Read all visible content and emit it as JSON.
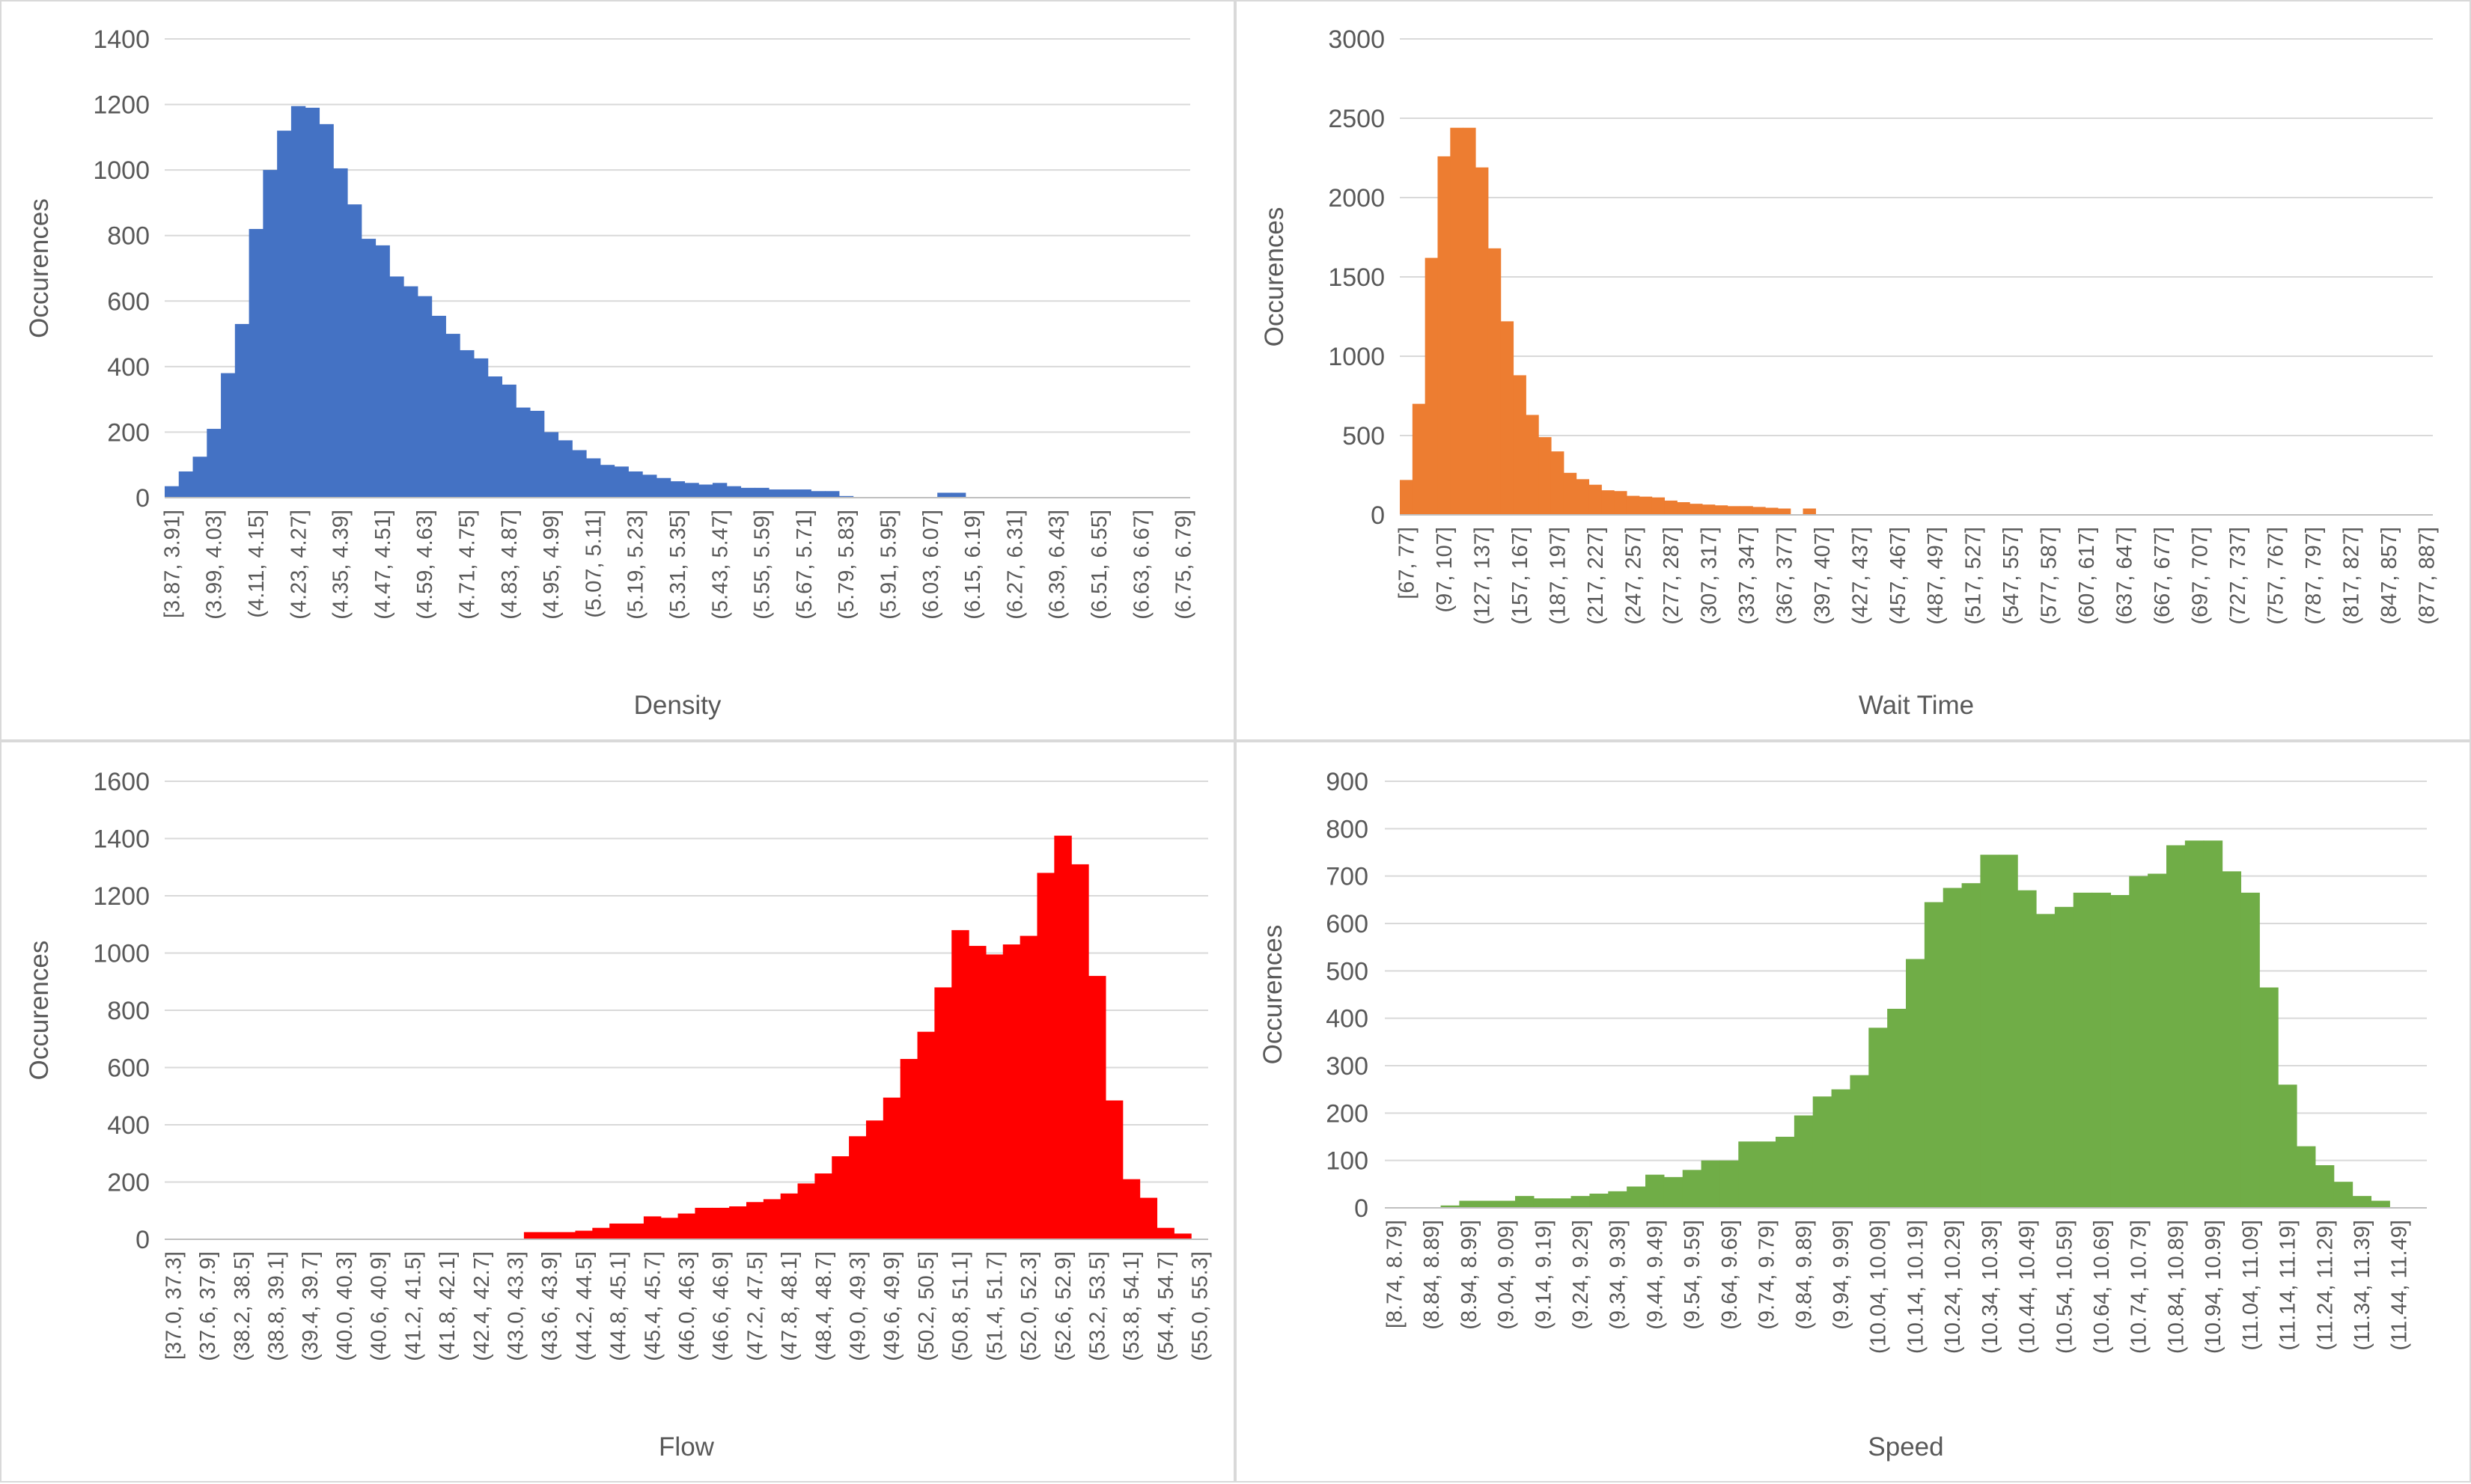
{
  "chart_data": [
    {
      "type": "bar",
      "xlabel": "Density",
      "ylabel": "Occurences",
      "ylim": [
        0,
        1400
      ],
      "yticks": [
        0,
        200,
        400,
        600,
        800,
        1000,
        1200,
        1400
      ],
      "grid": true,
      "color": "#4472c4",
      "categories": [
        "[3.87, 3.91]",
        "(3.91, 3.95]",
        "(3.95, 3.99]",
        "(3.99, 4.03]",
        "(4.03, 4.07]",
        "(4.07, 4.11]",
        "(4.11, 4.15]",
        "(4.15, 4.19]",
        "(4.19, 4.23]",
        "(4.23, 4.27]",
        "(4.27, 4.31]",
        "(4.31, 4.35]",
        "(4.35, 4.39]",
        "(4.39, 4.43]",
        "(4.43, 4.47]",
        "(4.47, 4.51]",
        "(4.51, 4.55]",
        "(4.55, 4.59]",
        "(4.59, 4.63]",
        "(4.63, 4.67]",
        "(4.67, 4.71]",
        "(4.71, 4.75]",
        "(4.75, 4.79]",
        "(4.79, 4.83]",
        "(4.83, 4.87]",
        "(4.87, 4.91]",
        "(4.91, 4.95]",
        "(4.95, 4.99]",
        "(4.99, 5.03]",
        "(5.03, 5.07]",
        "(5.07, 5.11]",
        "(5.11, 5.15]",
        "(5.15, 5.19]",
        "(5.19, 5.23]",
        "(5.23, 5.27]",
        "(5.27, 5.31]",
        "(5.31, 5.35]",
        "(5.35, 5.39]",
        "(5.39, 5.43]",
        "(5.43, 5.47]",
        "(5.47, 5.51]",
        "(5.51, 5.55]",
        "(5.55, 5.59]",
        "(5.59, 5.63]",
        "(5.63, 5.67]",
        "(5.67, 5.71]",
        "(5.71, 5.75]",
        "(5.75, 5.79]",
        "(5.79, 5.83]",
        "(5.83, 5.87]",
        "(5.87, 5.91]",
        "(5.91, 5.95]",
        "(5.95, 5.99]",
        "(5.99, 6.03]",
        "(6.03, 6.07]",
        "(6.07, 6.11]",
        "(6.11, 6.15]",
        "(6.15, 6.19]",
        "(6.19, 6.23]",
        "(6.23, 6.27]",
        "(6.27, 6.31]",
        "(6.31, 6.35]",
        "(6.35, 6.39]",
        "(6.39, 6.43]",
        "(6.43, 6.47]",
        "(6.47, 6.51]",
        "(6.51, 6.55]",
        "(6.55, 6.59]",
        "(6.59, 6.63]",
        "(6.63, 6.67]",
        "(6.67, 6.71]",
        "(6.71, 6.75]",
        "(6.75, 6.79]"
      ],
      "values": [
        35,
        80,
        125,
        210,
        380,
        530,
        820,
        1000,
        1120,
        1195,
        1190,
        1140,
        1005,
        895,
        790,
        770,
        675,
        645,
        615,
        555,
        500,
        450,
        425,
        370,
        345,
        275,
        265,
        200,
        175,
        145,
        120,
        100,
        95,
        80,
        70,
        60,
        50,
        45,
        40,
        45,
        35,
        30,
        30,
        25,
        25,
        25,
        20,
        20,
        5,
        0,
        0,
        0,
        0,
        0,
        0,
        15,
        15,
        0,
        0,
        0,
        0,
        0,
        0,
        0,
        0,
        0,
        0,
        0,
        0,
        0,
        0,
        0,
        0
      ]
    },
    {
      "type": "bar",
      "xlabel": "Wait Time",
      "ylabel": "Occurences",
      "ylim": [
        0,
        3000
      ],
      "yticks": [
        0,
        500,
        1000,
        1500,
        2000,
        2500,
        3000
      ],
      "grid": true,
      "color": "#ed7d31",
      "categories": [
        "[67, 77]",
        "(77, 87]",
        "(87, 97]",
        "(97, 107]",
        "(107, 117]",
        "(117, 127]",
        "(127, 137]",
        "(137, 147]",
        "(147, 157]",
        "(157, 167]",
        "(167, 177]",
        "(177, 187]",
        "(187, 197]",
        "(197, 207]",
        "(207, 217]",
        "(217, 227]",
        "(227, 237]",
        "(237, 247]",
        "(247, 257]",
        "(257, 267]",
        "(267, 277]",
        "(277, 287]",
        "(287, 297]",
        "(297, 307]",
        "(307, 317]",
        "(317, 327]",
        "(327, 337]",
        "(337, 347]",
        "(347, 357]",
        "(357, 367]",
        "(367, 377]",
        "(377, 387]",
        "(387, 397]",
        "(397, 407]",
        "(407, 417]",
        "(417, 427]",
        "(427, 437]",
        "(437, 447]",
        "(447, 457]",
        "(457, 467]",
        "(467, 477]",
        "(477, 487]",
        "(487, 497]",
        "(497, 507]",
        "(507, 517]",
        "(517, 527]",
        "(527, 537]",
        "(537, 547]",
        "(547, 557]",
        "(557, 567]",
        "(567, 577]",
        "(577, 587]",
        "(587, 597]",
        "(597, 607]",
        "(607, 617]",
        "(617, 627]",
        "(627, 637]",
        "(637, 647]",
        "(647, 657]",
        "(657, 667]",
        "(667, 677]",
        "(677, 687]",
        "(687, 697]",
        "(697, 707]",
        "(707, 717]",
        "(717, 727]",
        "(727, 737]",
        "(737, 747]",
        "(747, 757]",
        "(757, 767]",
        "(767, 777]",
        "(777, 787]",
        "(787, 797]",
        "(797, 807]",
        "(807, 817]",
        "(817, 827]",
        "(827, 837]",
        "(837, 847]",
        "(847, 857]",
        "(857, 867]",
        "(867, 877]",
        "(877, 887]"
      ],
      "values": [
        220,
        700,
        1620,
        2260,
        2440,
        2440,
        2190,
        1680,
        1220,
        880,
        630,
        490,
        400,
        265,
        225,
        190,
        155,
        150,
        120,
        115,
        110,
        90,
        80,
        70,
        65,
        60,
        55,
        55,
        50,
        45,
        40,
        0,
        40,
        0,
        0,
        0,
        0,
        0,
        0,
        0,
        0,
        0,
        0,
        0,
        0,
        0,
        0,
        0,
        0,
        0,
        0,
        0,
        0,
        0,
        0,
        0,
        0,
        0,
        0,
        0,
        0,
        0,
        0,
        0,
        0,
        0,
        0,
        0,
        0,
        0,
        0,
        0,
        0,
        0,
        0,
        0,
        0,
        0,
        0,
        0,
        0,
        0
      ]
    },
    {
      "type": "bar",
      "xlabel": "Flow",
      "ylabel": "Occurences",
      "ylim": [
        0,
        1600
      ],
      "yticks": [
        0,
        200,
        400,
        600,
        800,
        1000,
        1200,
        1400,
        1600
      ],
      "grid": true,
      "color": "#ff0000",
      "categories": [
        "[37.0, 37.3]",
        "(37.3, 37.6]",
        "(37.6, 37.9]",
        "(37.9, 38.2]",
        "(38.2, 38.5]",
        "(38.5, 38.8]",
        "(38.8, 39.1]",
        "(39.1, 39.4]",
        "(39.4, 39.7]",
        "(39.7, 40.0]",
        "(40.0, 40.3]",
        "(40.3, 40.6]",
        "(40.6, 40.9]",
        "(40.9, 41.2]",
        "(41.2, 41.5]",
        "(41.5, 41.8]",
        "(41.8, 42.1]",
        "(42.1, 42.4]",
        "(42.4, 42.7]",
        "(42.7, 43.0]",
        "(43.0, 43.3]",
        "(43.3, 43.6]",
        "(43.6, 43.9]",
        "(43.9, 44.2]",
        "(44.2, 44.5]",
        "(44.5, 44.8]",
        "(44.8, 45.1]",
        "(45.1, 45.4]",
        "(45.4, 45.7]",
        "(45.7, 46.0]",
        "(46.0, 46.3]",
        "(46.3, 46.6]",
        "(46.6, 46.9]",
        "(46.9, 47.2]",
        "(47.2, 47.5]",
        "(47.5, 47.8]",
        "(47.8, 48.1]",
        "(48.1, 48.4]",
        "(48.4, 48.7]",
        "(48.7, 49.0]",
        "(49.0, 49.3]",
        "(49.3, 49.6]",
        "(49.6, 49.9]",
        "(49.9, 50.2]",
        "(50.2, 50.5]",
        "(50.5, 50.8]",
        "(50.8, 51.1]",
        "(51.1, 51.4]",
        "(51.4, 51.7]",
        "(51.7, 52.0]",
        "(52.0, 52.3]",
        "(52.3, 52.6]",
        "(52.6, 52.9]",
        "(52.9, 53.2]",
        "(53.2, 53.5]",
        "(53.5, 53.8]",
        "(53.8, 54.1]",
        "(54.1, 54.4]",
        "(54.4, 54.7]",
        "(54.7, 55.0]",
        "(55.0, 55.3]"
      ],
      "values": [
        0,
        0,
        0,
        0,
        0,
        0,
        0,
        0,
        0,
        0,
        0,
        0,
        0,
        0,
        0,
        0,
        0,
        0,
        0,
        0,
        0,
        25,
        25,
        25,
        30,
        40,
        55,
        55,
        80,
        75,
        90,
        110,
        110,
        115,
        130,
        140,
        160,
        195,
        230,
        290,
        360,
        415,
        495,
        630,
        725,
        880,
        1080,
        1025,
        995,
        1030,
        1060,
        1280,
        1410,
        1310,
        920,
        485,
        210,
        145,
        40,
        20,
        0
      ]
    },
    {
      "type": "bar",
      "xlabel": "Speed",
      "ylabel": "Occurences",
      "ylim": [
        0,
        900
      ],
      "yticks": [
        0,
        100,
        200,
        300,
        400,
        500,
        600,
        700,
        800,
        900
      ],
      "grid": true,
      "color": "#70ad47",
      "categories": [
        "[8.74, 8.79]",
        "(8.79, 8.84]",
        "(8.84, 8.89]",
        "(8.89, 8.94]",
        "(8.94, 8.99]",
        "(8.99, 9.04]",
        "(9.04, 9.09]",
        "(9.09, 9.14]",
        "(9.14, 9.19]",
        "(9.19, 9.24]",
        "(9.24, 9.29]",
        "(9.29, 9.34]",
        "(9.34, 9.39]",
        "(9.39, 9.44]",
        "(9.44, 9.49]",
        "(9.49, 9.54]",
        "(9.54, 9.59]",
        "(9.59, 9.64]",
        "(9.64, 9.69]",
        "(9.69, 9.74]",
        "(9.74, 9.79]",
        "(9.79, 9.84]",
        "(9.84, 9.89]",
        "(9.89, 9.94]",
        "(9.94, 9.99]",
        "(9.99, 10.04]",
        "(10.04, 10.09]",
        "(10.09, 10.14]",
        "(10.14, 10.19]",
        "(10.19, 10.24]",
        "(10.24, 10.29]",
        "(10.29, 10.34]",
        "(10.34, 10.39]",
        "(10.39, 10.44]",
        "(10.44, 10.49]",
        "(10.49, 10.54]",
        "(10.54, 10.59]",
        "(10.59, 10.64]",
        "(10.64, 10.69]",
        "(10.69, 10.74]",
        "(10.74, 10.79]",
        "(10.79, 10.84]",
        "(10.84, 10.89]",
        "(10.89, 10.94]",
        "(10.94, 10.99]",
        "(10.99, 11.04]",
        "(11.04, 11.09]",
        "(11.09, 11.14]",
        "(11.14, 11.19]",
        "(11.19, 11.24]",
        "(11.24, 11.29]",
        "(11.29, 11.34]",
        "(11.34, 11.39]",
        "(11.39, 11.44]",
        "(11.44, 11.49]",
        "(11.49, 11.54]"
      ],
      "values": [
        0,
        0,
        0,
        5,
        15,
        15,
        15,
        25,
        20,
        20,
        25,
        30,
        35,
        45,
        70,
        65,
        80,
        100,
        100,
        140,
        140,
        150,
        195,
        235,
        250,
        280,
        380,
        420,
        525,
        645,
        675,
        685,
        745,
        745,
        670,
        620,
        635,
        665,
        665,
        660,
        700,
        705,
        765,
        775,
        775,
        710,
        665,
        465,
        260,
        130,
        90,
        55,
        25,
        15,
        0,
        0
      ]
    }
  ]
}
